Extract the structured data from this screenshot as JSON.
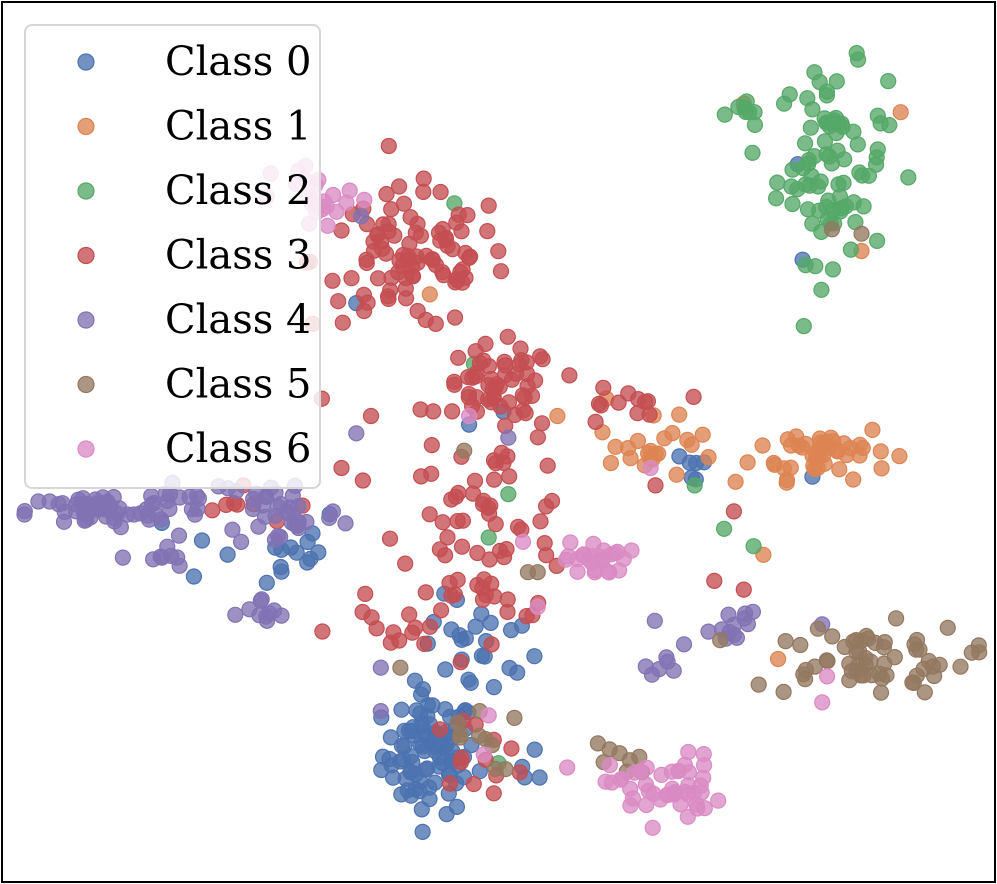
{
  "chart_data": {
    "type": "scatter",
    "title": "",
    "xlabel": "",
    "ylabel": "",
    "xlim": [
      0,
      100
    ],
    "ylim": [
      0,
      100
    ],
    "axis_ticks": "none",
    "grid": false,
    "legend": {
      "placement": "top-left",
      "entries": [
        "Class 0",
        "Class 1",
        "Class 2",
        "Class 3",
        "Class 4",
        "Class 5",
        "Class 6"
      ]
    },
    "series": [
      {
        "name": "Class 0",
        "color": "#4c72b0",
        "clusters": [
          {
            "cx": 43,
            "cy": 14,
            "sx": 2.4,
            "sy": 3.4,
            "n": 90
          },
          {
            "cx": 48,
            "cy": 26,
            "sx": 3.0,
            "sy": 3.0,
            "n": 25
          },
          {
            "cx": 26,
            "cy": 38,
            "sx": 4.5,
            "sy": 2.5,
            "n": 18
          },
          {
            "cx": 69,
            "cy": 47,
            "sx": 1.5,
            "sy": 1.2,
            "n": 6
          },
          {
            "cx": 54,
            "cy": 13,
            "sx": 1.5,
            "sy": 1.5,
            "n": 4
          }
        ],
        "points": [
          [
            81,
            71
          ],
          [
            80.5,
            82
          ],
          [
            35.5,
            66
          ],
          [
            82,
            46
          ],
          [
            47,
            52
          ],
          [
            50.5,
            53.5
          ]
        ]
      },
      {
        "name": "Class 1",
        "color": "#dd8452",
        "clusters": [
          {
            "cx": 83,
            "cy": 49,
            "sx": 3.5,
            "sy": 1.6,
            "n": 48
          },
          {
            "cx": 66,
            "cy": 49,
            "sx": 3.0,
            "sy": 1.8,
            "n": 22
          }
        ],
        "points": [
          [
            75,
            89
          ],
          [
            91,
            88
          ],
          [
            87,
            72
          ],
          [
            77,
            37
          ],
          [
            61,
            55
          ],
          [
            43,
            67
          ],
          [
            78.5,
            25
          ],
          [
            56,
            53
          ]
        ]
      },
      {
        "name": "Class 2",
        "color": "#55a868",
        "clusters": [
          {
            "cx": 84,
            "cy": 82,
            "sx": 2.8,
            "sy": 5.5,
            "n": 85
          },
          {
            "cx": 75,
            "cy": 88,
            "sx": 1.2,
            "sy": 1.0,
            "n": 8
          }
        ],
        "points": [
          [
            45.5,
            77.5
          ],
          [
            47.5,
            59
          ],
          [
            51,
            44
          ],
          [
            49,
            39
          ],
          [
            70,
            45
          ],
          [
            76,
            38
          ],
          [
            73,
            40
          ],
          [
            50,
            13
          ]
        ]
      },
      {
        "name": "Class 3",
        "color": "#c44e52",
        "clusters": [
          {
            "cx": 41,
            "cy": 71,
            "sx": 5.0,
            "sy": 4.0,
            "n": 95
          },
          {
            "cx": 50,
            "cy": 56,
            "sx": 3.0,
            "sy": 2.5,
            "n": 55
          },
          {
            "cx": 49,
            "cy": 40,
            "sx": 4.5,
            "sy": 5.5,
            "n": 70
          },
          {
            "cx": 39,
            "cy": 28,
            "sx": 3.0,
            "sy": 2.0,
            "n": 12
          },
          {
            "cx": 62,
            "cy": 54,
            "sx": 2.5,
            "sy": 1.5,
            "n": 12
          },
          {
            "cx": 48,
            "cy": 14,
            "sx": 2.5,
            "sy": 2.0,
            "n": 12
          },
          {
            "cx": 23,
            "cy": 42,
            "sx": 3.0,
            "sy": 1.5,
            "n": 7
          }
        ],
        "points": [
          [
            32,
            55
          ],
          [
            37,
            53
          ],
          [
            24,
            45
          ],
          [
            34,
            47
          ],
          [
            75,
            33
          ],
          [
            72,
            34
          ],
          [
            74,
            42
          ],
          [
            66,
            45
          ]
        ]
      },
      {
        "name": "Class 4",
        "color": "#8172b3",
        "clusters": [
          {
            "cx": 9,
            "cy": 42,
            "sx": 3.5,
            "sy": 1.0,
            "n": 50
          },
          {
            "cx": 28,
            "cy": 42,
            "sx": 3.0,
            "sy": 2.2,
            "n": 35
          },
          {
            "cx": 18,
            "cy": 43.5,
            "sx": 3.0,
            "sy": 1.5,
            "n": 18
          },
          {
            "cx": 26,
            "cy": 30,
            "sx": 1.5,
            "sy": 1.0,
            "n": 10
          },
          {
            "cx": 15.5,
            "cy": 36.5,
            "sx": 1.3,
            "sy": 0.8,
            "n": 8
          },
          {
            "cx": 74,
            "cy": 29,
            "sx": 1.2,
            "sy": 1.4,
            "n": 12
          },
          {
            "cx": 67,
            "cy": 26.5,
            "sx": 0.8,
            "sy": 2.0,
            "n": 8
          }
        ],
        "points": [
          [
            35.5,
            51
          ],
          [
            38,
            24
          ],
          [
            38,
            19
          ],
          [
            51,
            50.5
          ],
          [
            83,
            29
          ],
          [
            36,
            76
          ]
        ]
      },
      {
        "name": "Class 5",
        "color": "#937860",
        "clusters": [
          {
            "cx": 87,
            "cy": 25,
            "sx": 5.5,
            "sy": 2.0,
            "n": 60
          },
          {
            "cx": 62,
            "cy": 13,
            "sx": 1.5,
            "sy": 1.5,
            "n": 8
          },
          {
            "cx": 47,
            "cy": 16,
            "sx": 2.5,
            "sy": 2.0,
            "n": 10
          }
        ],
        "points": [
          [
            53,
            35
          ],
          [
            54,
            35
          ],
          [
            46.5,
            49
          ],
          [
            84,
            74.5
          ],
          [
            87,
            74
          ],
          [
            40,
            24
          ]
        ]
      },
      {
        "name": "Class 6",
        "color": "#da8bc3",
        "clusters": [
          {
            "cx": 60,
            "cy": 36.5,
            "sx": 1.6,
            "sy": 1.0,
            "n": 25
          },
          {
            "cx": 67,
            "cy": 10,
            "sx": 2.8,
            "sy": 2.0,
            "n": 45
          },
          {
            "cx": 32,
            "cy": 78,
            "sx": 2.5,
            "sy": 2.0,
            "n": 22
          }
        ],
        "points": [
          [
            47,
            53
          ],
          [
            52.5,
            38.5
          ],
          [
            54,
            31
          ],
          [
            65.5,
            47
          ],
          [
            83.5,
            23
          ],
          [
            83,
            20
          ],
          [
            48.5,
            14
          ],
          [
            57,
            12.5
          ],
          [
            49,
            18.5
          ]
        ]
      }
    ]
  }
}
